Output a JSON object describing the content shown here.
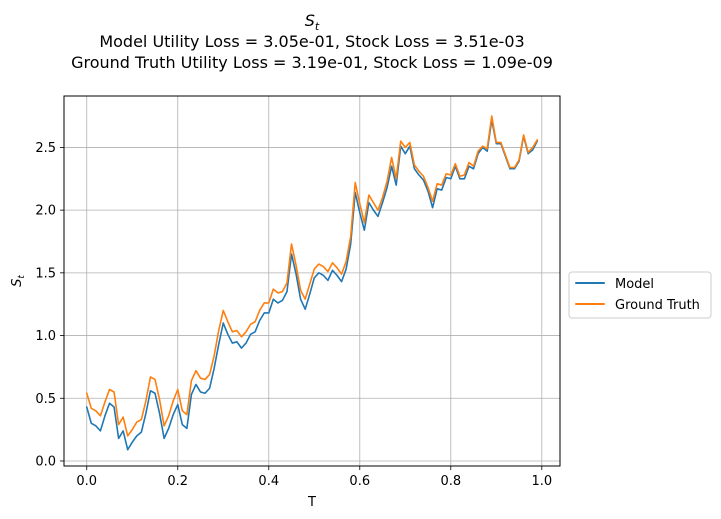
{
  "chart_data": {
    "type": "line",
    "title_symbol": "S",
    "title_subscript": "t",
    "title_lines": [
      "Model Utility Loss = 3.05e-01, Stock Loss = 3.51e-03",
      "Ground Truth Utility Loss = 3.19e-01, Stock Loss = 1.09e-09"
    ],
    "xlabel": "T",
    "ylabel_symbol": "S",
    "ylabel_subscript": "t",
    "xlim": [
      -0.05,
      1.04
    ],
    "ylim": [
      -0.04,
      2.91
    ],
    "xticks": [
      0.0,
      0.2,
      0.4,
      0.6,
      0.8,
      1.0
    ],
    "xtick_labels": [
      "0.0",
      "0.2",
      "0.4",
      "0.6",
      "0.8",
      "1.0"
    ],
    "yticks": [
      0.0,
      0.5,
      1.0,
      1.5,
      2.0,
      2.5
    ],
    "ytick_labels": [
      "0.0",
      "0.5",
      "1.0",
      "1.5",
      "2.0",
      "2.5"
    ],
    "grid": true,
    "legend_position": "outside-right",
    "x": [
      0.0,
      0.01,
      0.02,
      0.03,
      0.04,
      0.05,
      0.06,
      0.07,
      0.08,
      0.09,
      0.1,
      0.11,
      0.12,
      0.13,
      0.14,
      0.15,
      0.16,
      0.17,
      0.18,
      0.19,
      0.2,
      0.21,
      0.22,
      0.23,
      0.24,
      0.25,
      0.26,
      0.27,
      0.28,
      0.29,
      0.3,
      0.31,
      0.32,
      0.33,
      0.34,
      0.35,
      0.36,
      0.37,
      0.38,
      0.39,
      0.4,
      0.41,
      0.42,
      0.43,
      0.44,
      0.45,
      0.46,
      0.47,
      0.48,
      0.49,
      0.5,
      0.51,
      0.52,
      0.53,
      0.54,
      0.55,
      0.56,
      0.57,
      0.58,
      0.59,
      0.6,
      0.61,
      0.62,
      0.63,
      0.64,
      0.65,
      0.66,
      0.67,
      0.68,
      0.69,
      0.7,
      0.71,
      0.72,
      0.73,
      0.74,
      0.75,
      0.76,
      0.77,
      0.78,
      0.79,
      0.8,
      0.81,
      0.82,
      0.83,
      0.84,
      0.85,
      0.86,
      0.87,
      0.88,
      0.89,
      0.9,
      0.91,
      0.92,
      0.93,
      0.94,
      0.95,
      0.96,
      0.97,
      0.98,
      0.99
    ],
    "series": [
      {
        "name": "Model",
        "color": "#1f77b4",
        "values": [
          0.43,
          0.3,
          0.28,
          0.24,
          0.36,
          0.46,
          0.43,
          0.18,
          0.24,
          0.09,
          0.15,
          0.2,
          0.23,
          0.38,
          0.56,
          0.54,
          0.38,
          0.18,
          0.26,
          0.37,
          0.45,
          0.29,
          0.26,
          0.53,
          0.61,
          0.55,
          0.54,
          0.58,
          0.74,
          0.93,
          1.1,
          1.01,
          0.94,
          0.95,
          0.9,
          0.94,
          1.01,
          1.03,
          1.12,
          1.18,
          1.18,
          1.29,
          1.26,
          1.28,
          1.35,
          1.65,
          1.49,
          1.29,
          1.21,
          1.33,
          1.46,
          1.5,
          1.48,
          1.44,
          1.52,
          1.48,
          1.43,
          1.53,
          1.73,
          2.14,
          1.98,
          1.84,
          2.06,
          2.0,
          1.95,
          2.06,
          2.18,
          2.35,
          2.2,
          2.51,
          2.45,
          2.51,
          2.33,
          2.28,
          2.24,
          2.15,
          2.02,
          2.17,
          2.16,
          2.26,
          2.25,
          2.35,
          2.25,
          2.25,
          2.35,
          2.33,
          2.45,
          2.5,
          2.47,
          2.72,
          2.53,
          2.53,
          2.43,
          2.33,
          2.33,
          2.39,
          2.59,
          2.45,
          2.48,
          2.55
        ]
      },
      {
        "name": "Ground Truth",
        "color": "#ff7f0e",
        "values": [
          0.54,
          0.42,
          0.4,
          0.36,
          0.47,
          0.57,
          0.55,
          0.29,
          0.35,
          0.2,
          0.25,
          0.31,
          0.33,
          0.48,
          0.67,
          0.65,
          0.49,
          0.28,
          0.36,
          0.48,
          0.57,
          0.4,
          0.37,
          0.64,
          0.72,
          0.66,
          0.65,
          0.69,
          0.84,
          1.04,
          1.2,
          1.11,
          1.03,
          1.04,
          0.99,
          1.03,
          1.09,
          1.11,
          1.2,
          1.26,
          1.26,
          1.37,
          1.34,
          1.35,
          1.42,
          1.73,
          1.56,
          1.36,
          1.29,
          1.41,
          1.53,
          1.57,
          1.55,
          1.51,
          1.58,
          1.54,
          1.49,
          1.59,
          1.79,
          2.22,
          2.05,
          1.9,
          2.12,
          2.06,
          2.0,
          2.1,
          2.23,
          2.42,
          2.25,
          2.55,
          2.5,
          2.54,
          2.36,
          2.31,
          2.27,
          2.18,
          2.07,
          2.21,
          2.2,
          2.29,
          2.28,
          2.37,
          2.27,
          2.28,
          2.38,
          2.35,
          2.47,
          2.51,
          2.49,
          2.75,
          2.54,
          2.54,
          2.44,
          2.34,
          2.34,
          2.4,
          2.6,
          2.46,
          2.5,
          2.56
        ]
      }
    ]
  }
}
